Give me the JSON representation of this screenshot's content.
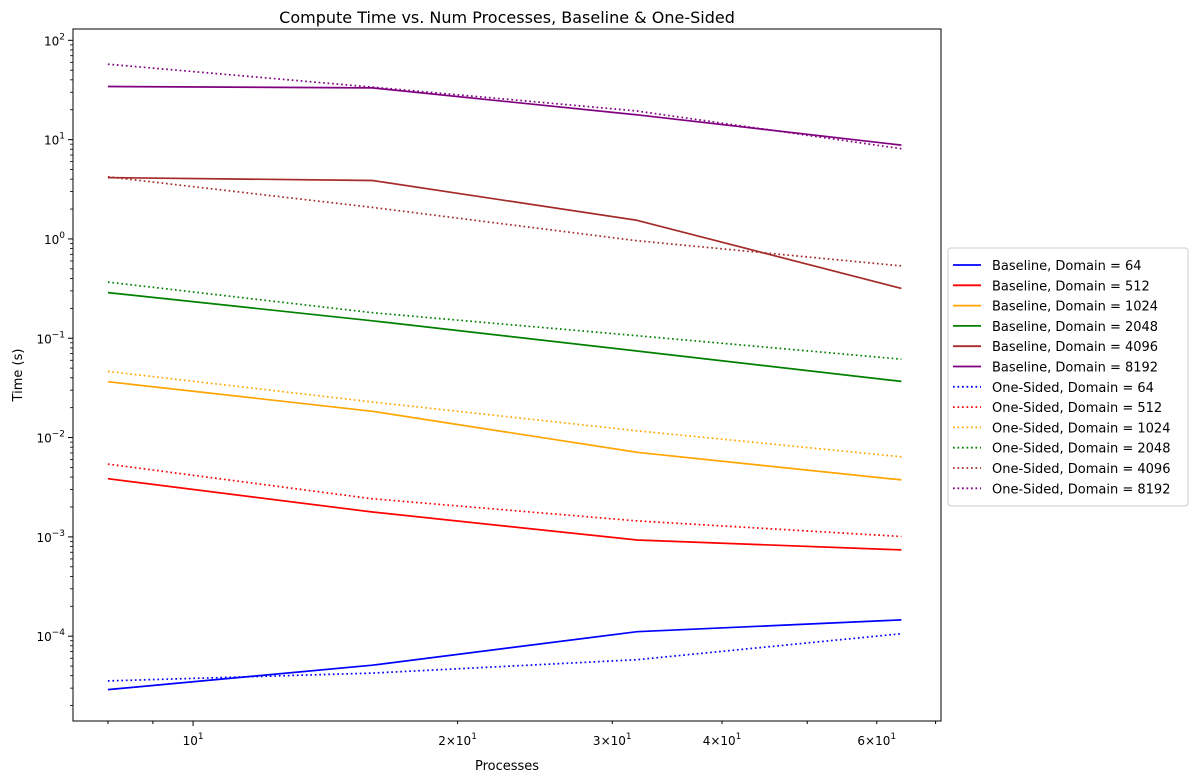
{
  "chart_data": {
    "type": "line",
    "title": "Compute Time vs. Num Processes, Baseline & One-Sided",
    "xlabel": "Processes",
    "ylabel": "Time (s)",
    "xscale": "log",
    "yscale": "log",
    "xlim": [
      7.3,
      71
    ],
    "ylim": [
      1.4e-05,
      130
    ],
    "x": [
      8,
      16,
      32,
      64
    ],
    "x_ticks_major": [
      {
        "v": 10,
        "b": "10",
        "e": "1"
      }
    ],
    "x_ticks_minor": [
      {
        "v": 20,
        "m": "2",
        "b": "10",
        "e": "1"
      },
      {
        "v": 30,
        "m": "3",
        "b": "10",
        "e": "1"
      },
      {
        "v": 40,
        "m": "4",
        "b": "10",
        "e": "1"
      },
      {
        "v": 60,
        "m": "6",
        "b": "10",
        "e": "1"
      }
    ],
    "y_ticks": [
      {
        "v": 0.0001,
        "b": "10",
        "e": "−4"
      },
      {
        "v": 0.001,
        "b": "10",
        "e": "−3"
      },
      {
        "v": 0.01,
        "b": "10",
        "e": "−2"
      },
      {
        "v": 0.1,
        "b": "10",
        "e": "−1"
      },
      {
        "v": 1,
        "b": "10",
        "e": "0"
      },
      {
        "v": 10,
        "b": "10",
        "e": "1"
      },
      {
        "v": 100,
        "b": "10",
        "e": "2"
      }
    ],
    "legend_position": "right, outside plot",
    "series": [
      {
        "name": "Baseline, Domain = 64",
        "color": "#0000ff",
        "style": "solid",
        "values": [
          2.9e-05,
          5.1e-05,
          0.000111,
          0.000146
        ]
      },
      {
        "name": "Baseline, Domain = 512",
        "color": "#ff0000",
        "style": "solid",
        "values": [
          0.00385,
          0.00178,
          0.00093,
          0.00074
        ]
      },
      {
        "name": "Baseline, Domain = 1024",
        "color": "#ffa500",
        "style": "solid",
        "values": [
          0.0365,
          0.0184,
          0.0071,
          0.00375
        ]
      },
      {
        "name": "Baseline, Domain = 2048",
        "color": "#008000",
        "style": "solid",
        "values": [
          0.288,
          0.15,
          0.0745,
          0.0368
        ]
      },
      {
        "name": "Baseline, Domain = 4096",
        "color": "#a52a2a",
        "style": "solid",
        "values": [
          4.15,
          3.88,
          1.54,
          0.318
        ]
      },
      {
        "name": "Baseline, Domain = 8192",
        "color": "#800080",
        "style": "solid",
        "values": [
          34.3,
          33.2,
          17.8,
          8.8
        ]
      },
      {
        "name": "One-Sided, Domain = 64",
        "color": "#0000ff",
        "style": "dotted",
        "values": [
          3.55e-05,
          4.25e-05,
          5.8e-05,
          0.000106
        ]
      },
      {
        "name": "One-Sided, Domain = 512",
        "color": "#ff0000",
        "style": "dotted",
        "values": [
          0.0054,
          0.00242,
          0.00145,
          0.00101
        ]
      },
      {
        "name": "One-Sided, Domain = 1024",
        "color": "#ffa500",
        "style": "dotted",
        "values": [
          0.0464,
          0.0228,
          0.0117,
          0.0064
        ]
      },
      {
        "name": "One-Sided, Domain = 2048",
        "color": "#008000",
        "style": "dotted",
        "values": [
          0.368,
          0.181,
          0.106,
          0.0615
        ]
      },
      {
        "name": "One-Sided, Domain = 4096",
        "color": "#a52a2a",
        "style": "dotted",
        "values": [
          4.22,
          2.08,
          0.96,
          0.535
        ]
      },
      {
        "name": "One-Sided, Domain = 8192",
        "color": "#800080",
        "style": "dotted",
        "values": [
          57.5,
          33.8,
          19.4,
          8.1
        ]
      }
    ]
  }
}
